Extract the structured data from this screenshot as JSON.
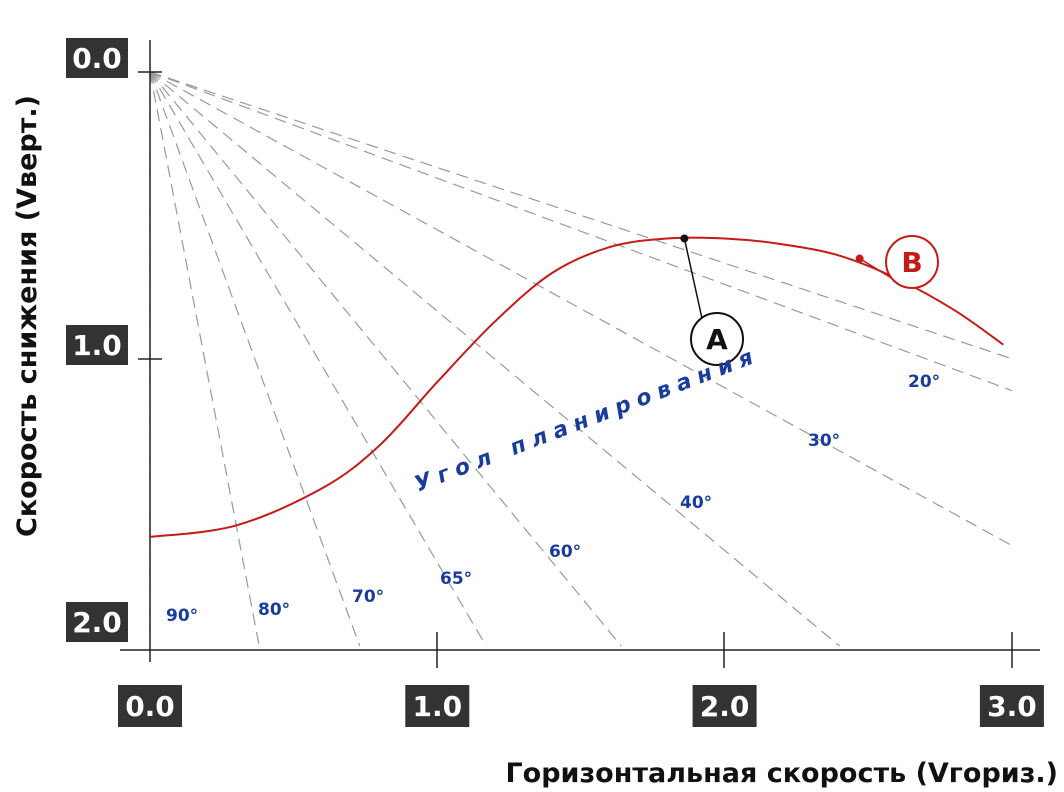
{
  "chart_data": {
    "type": "line",
    "xlabel": "Горизонтальная скорость (Vгориз.)",
    "ylabel": "Скорость снижения (Vверт.)",
    "xlim": [
      0,
      3.0
    ],
    "ylim": [
      0,
      2.0
    ],
    "y_inverted": true,
    "x_ticks": [
      "0.0",
      "1.0",
      "2.0",
      "3.0"
    ],
    "y_ticks": [
      "0.0",
      "1.0",
      "2.0"
    ],
    "grid": false,
    "series": [
      {
        "color": "#c41a1a",
        "points": [
          [
            0.0,
            1.62
          ],
          [
            0.3,
            1.58
          ],
          [
            0.6,
            1.45
          ],
          [
            0.8,
            1.3
          ],
          [
            1.0,
            1.08
          ],
          [
            1.2,
            0.87
          ],
          [
            1.4,
            0.7
          ],
          [
            1.6,
            0.61
          ],
          [
            1.8,
            0.58
          ],
          [
            2.0,
            0.58
          ],
          [
            2.2,
            0.6
          ],
          [
            2.4,
            0.64
          ],
          [
            2.6,
            0.72
          ],
          [
            2.8,
            0.83
          ],
          [
            2.97,
            0.95
          ]
        ]
      }
    ],
    "glide_angle_rays": [
      {
        "label": "90°",
        "x_at_y2": 0.0
      },
      {
        "label": "80°",
        "x_at_y2": 0.38
      },
      {
        "label": "70°",
        "x_at_y2": 0.73
      },
      {
        "label": "65°",
        "x_at_y2": 1.17
      },
      {
        "label": "60°",
        "x_at_y2": 1.64
      },
      {
        "label": "40°",
        "x_at_y2": 2.4
      },
      {
        "label": "30°",
        "slope": 0.55
      },
      {
        "label": "20°",
        "slope": 0.37
      },
      {
        "label": "",
        "slope": 0.333
      }
    ],
    "annotation": "Угол планирования",
    "points_of_interest": [
      {
        "label": "A",
        "x": 1.86,
        "y": 0.58,
        "color": "#111111"
      },
      {
        "label": "B",
        "x": 2.47,
        "y": 0.65,
        "color": "#c41a1a"
      }
    ]
  }
}
